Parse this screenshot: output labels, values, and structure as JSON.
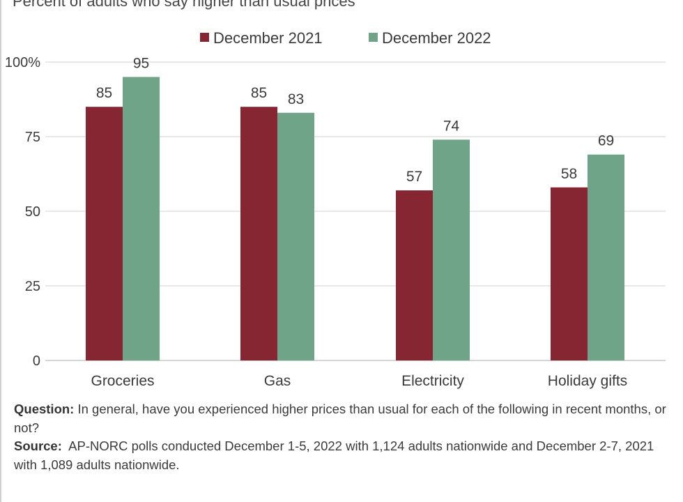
{
  "subtitle": "Percent of adults who say higher than usual prices",
  "colors": {
    "dec2021": "#862633",
    "dec2022": "#6fa488",
    "grid": "#d9d9d9",
    "axis": "#bdbdbd",
    "text": "#3a3a3a"
  },
  "chart_data": {
    "type": "bar",
    "categories": [
      "Groceries",
      "Gas",
      "Electricity",
      "Holiday gifts"
    ],
    "series": [
      {
        "name": "December 2021",
        "values": [
          85,
          85,
          57,
          58
        ],
        "color": "#862633"
      },
      {
        "name": "December 2022",
        "values": [
          95,
          83,
          74,
          69
        ],
        "color": "#6fa488"
      }
    ],
    "ylim": [
      0,
      100
    ],
    "yticks": [
      0,
      25,
      50,
      75,
      100
    ],
    "ytick_labels": [
      "0",
      "25",
      "50",
      "75",
      "100%"
    ],
    "grid": true,
    "legend": "top-center",
    "xlabel": "",
    "ylabel": ""
  },
  "notes": {
    "question_label": "Question:",
    "question_text": " In general, have you experienced higher prices than usual for each of the following in recent months, or not?",
    "source_label": "Source:",
    "source_text": "  AP-NORC polls conducted December 1-5, 2022 with 1,124 adults nationwide and December 2-7, 2021 with 1,089 adults nationwide."
  }
}
